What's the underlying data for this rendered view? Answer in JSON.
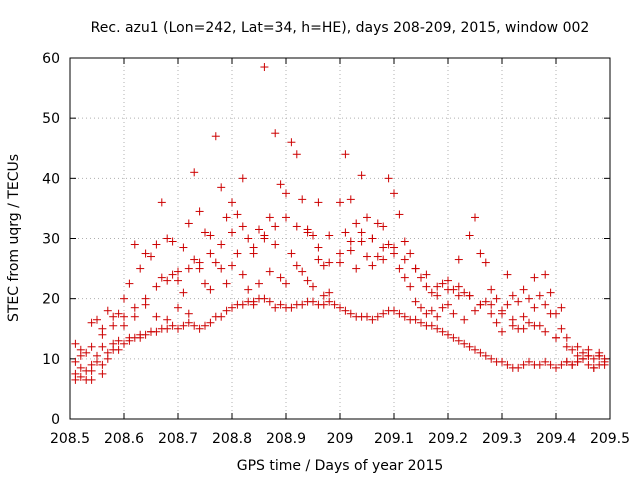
{
  "chart_data": {
    "type": "scatter",
    "title": "Rec. azu1 (Lon=242, Lat=34, h=HE), days 208-209, 2015, window 002",
    "xlabel": "GPS time / Days of year 2015",
    "ylabel": "STEC from uqrg / TECUs",
    "xlim": [
      208.5,
      209.5
    ],
    "ylim": [
      0,
      60
    ],
    "x_ticks": [
      208.5,
      208.6,
      208.7,
      208.8,
      208.9,
      209.0,
      209.1,
      209.2,
      209.3,
      209.4,
      209.5
    ],
    "x_tick_labels": [
      "208.5",
      "208.6",
      "208.7",
      "208.8",
      "208.9",
      "209",
      "209.1",
      "209.2",
      "209.3",
      "209.4",
      "209.5"
    ],
    "y_ticks": [
      0,
      10,
      20,
      30,
      40,
      50,
      60
    ],
    "y_tick_labels": [
      "0",
      "10",
      "20",
      "30",
      "40",
      "50",
      "60"
    ],
    "grid": true,
    "marker": "+",
    "color": "#cc0000",
    "series": [
      {
        "x": [
          208.51,
          208.51,
          208.51,
          208.52,
          208.52,
          208.53,
          208.53,
          208.54,
          208.54,
          208.54,
          208.55,
          208.55,
          208.56,
          208.56,
          208.56,
          208.57,
          208.57,
          208.58,
          208.58,
          208.59,
          208.59,
          208.6,
          208.6,
          208.61,
          208.61,
          208.62,
          208.62,
          208.63,
          208.63,
          208.64,
          208.64,
          208.65,
          208.65,
          208.66,
          208.66,
          208.67,
          208.67,
          208.68,
          208.68,
          208.69,
          208.69,
          208.7,
          208.7,
          208.71,
          208.71,
          208.72,
          208.72,
          208.73,
          208.73,
          208.74,
          208.74,
          208.75,
          208.75,
          208.76,
          208.76,
          208.77,
          208.77,
          208.78,
          208.78,
          208.79,
          208.79,
          208.8,
          208.8,
          208.81,
          208.81,
          208.82,
          208.82,
          208.83,
          208.83,
          208.84,
          208.84,
          208.85,
          208.85,
          208.86,
          208.86,
          208.87,
          208.87,
          208.88,
          208.88,
          208.89,
          208.89,
          208.9,
          208.9,
          208.91,
          208.91,
          208.92,
          208.92,
          208.93,
          208.93,
          208.94,
          208.94,
          208.95,
          208.95,
          208.96,
          208.96,
          208.97,
          208.97,
          208.98,
          208.98,
          209.0,
          209.0,
          209.01,
          209.01,
          209.02,
          209.02,
          209.03,
          209.03,
          209.04,
          209.04,
          209.05,
          209.05,
          209.06,
          209.06,
          209.07,
          209.07,
          209.08,
          209.08,
          209.09,
          209.09,
          209.1,
          209.1,
          209.11,
          209.11,
          209.12,
          209.12,
          209.13,
          209.13,
          209.14,
          209.14,
          209.15,
          209.15,
          209.16,
          209.16,
          209.17,
          209.17,
          209.18,
          209.18,
          209.19,
          209.19,
          209.2,
          209.2,
          209.21,
          209.21,
          209.22,
          209.22,
          209.23,
          209.23,
          209.24,
          209.24,
          209.25,
          209.25,
          209.26,
          209.26,
          209.27,
          209.27,
          209.28,
          209.28,
          209.29,
          209.29,
          209.3,
          209.3,
          209.31,
          209.31,
          209.32,
          209.32,
          209.33,
          209.33,
          209.34,
          209.34,
          209.35,
          209.35,
          209.36,
          209.36,
          209.37,
          209.37,
          209.38,
          209.38,
          209.39,
          209.39,
          209.4,
          209.4,
          209.41,
          209.41,
          209.42,
          209.42,
          209.43,
          209.43,
          209.44,
          209.44,
          209.45,
          209.45,
          209.46,
          209.46,
          209.47,
          209.47,
          209.48,
          209.48,
          209.49,
          209.49
        ],
        "y": [
          7.5,
          12.5,
          6.5,
          10.5,
          7.0,
          11.0,
          6.5,
          16.0,
          9.0,
          6.5,
          16.5,
          10.5,
          15.0,
          12.0,
          7.5,
          18.0,
          10.0,
          17.0,
          12.5,
          17.5,
          11.5,
          20.0,
          15.5,
          22.5,
          13.0,
          29.0,
          17.0,
          25.0,
          14.0,
          27.5,
          19.0,
          27.0,
          14.5,
          29.0,
          17.0,
          36.0,
          23.5,
          30.0,
          16.5,
          29.5,
          24.0,
          24.5,
          18.5,
          28.5,
          21.0,
          32.5,
          17.5,
          41.0,
          26.5,
          34.5,
          25.0,
          31.0,
          22.5,
          30.5,
          21.5,
          47.0,
          26.0,
          38.5,
          25.0,
          33.5,
          22.5,
          36.0,
          25.5,
          34.0,
          27.5,
          40.0,
          24.0,
          30.0,
          21.5,
          27.5,
          19.0,
          31.5,
          22.5,
          58.5,
          30.5,
          33.5,
          24.5,
          47.5,
          29.0,
          39.0,
          23.5,
          37.5,
          22.5,
          46.0,
          27.5,
          44.0,
          25.5,
          36.5,
          24.5,
          31.5,
          23.0,
          30.5,
          22.0,
          36.0,
          26.5,
          25.5,
          20.5,
          30.5,
          21.0,
          36.0,
          26.0,
          44.0,
          31.0,
          36.5,
          28.0,
          32.5,
          25.0,
          40.5,
          31.0,
          33.5,
          27.0,
          30.0,
          25.5,
          32.5,
          27.0,
          32.0,
          26.5,
          40.0,
          29.0,
          37.5,
          27.5,
          34.0,
          25.0,
          29.5,
          23.5,
          27.5,
          22.0,
          25.0,
          19.5,
          23.5,
          18.5,
          22.0,
          17.5,
          21.0,
          18.0,
          20.5,
          17.0,
          22.5,
          18.5,
          23.0,
          19.0,
          21.5,
          17.5,
          26.5,
          22.0,
          21.0,
          16.5,
          30.5,
          20.5,
          33.5,
          18.0,
          27.5,
          19.0,
          26.0,
          19.5,
          21.5,
          17.5,
          20.0,
          16.0,
          18.0,
          14.5,
          24.0,
          19.0,
          20.5,
          16.5,
          19.5,
          15.0,
          21.5,
          17.0,
          20.0,
          16.0,
          23.5,
          18.5,
          20.5,
          15.5,
          24.0,
          19.0,
          21.0,
          17.5,
          17.5,
          13.5,
          18.5,
          15.0,
          12.0,
          9.5,
          11.5,
          9.0,
          10.5,
          9.5,
          11.0,
          10.0,
          10.5,
          9.0,
          8.5,
          8.5,
          10.5,
          9.0,
          10.0,
          9.0
        ]
      },
      {
        "x": [
          208.51,
          208.52,
          208.53,
          208.54,
          208.55,
          208.56,
          208.57,
          208.58,
          208.59,
          208.6,
          208.61,
          208.62,
          208.63,
          208.64,
          208.65,
          208.66,
          208.67,
          208.68,
          208.69,
          208.7,
          208.71,
          208.72,
          208.73,
          208.74,
          208.75,
          208.76,
          208.77,
          208.78,
          208.79,
          208.8,
          208.81,
          208.82,
          208.83,
          208.84,
          208.85,
          208.86,
          208.87,
          208.88,
          208.89,
          208.9,
          208.91,
          208.92,
          208.93,
          208.94,
          208.95,
          208.96,
          208.97,
          208.98,
          208.99,
          209.0,
          209.01,
          209.02,
          209.03,
          209.04,
          209.05,
          209.06,
          209.07,
          209.08,
          209.09,
          209.1,
          209.11,
          209.12,
          209.13,
          209.14,
          209.15,
          209.16,
          209.17,
          209.18,
          209.19,
          209.2,
          209.21,
          209.22,
          209.23,
          209.24,
          209.25,
          209.26,
          209.27,
          209.28,
          209.29,
          209.3,
          209.31,
          209.32,
          209.33,
          209.34,
          209.35,
          209.36,
          209.37,
          209.38,
          209.39,
          209.4,
          209.41,
          209.42,
          209.43,
          209.44,
          209.45,
          209.46,
          209.47,
          209.48,
          209.49
        ],
        "y": [
          9.5,
          8.5,
          8.0,
          8.0,
          9.5,
          9.0,
          11.0,
          11.5,
          13.0,
          12.5,
          13.5,
          13.5,
          13.5,
          14.0,
          14.5,
          14.5,
          15.0,
          15.0,
          15.5,
          15.0,
          15.5,
          16.0,
          15.5,
          15.0,
          15.5,
          16.0,
          17.0,
          17.0,
          18.0,
          18.5,
          19.0,
          19.0,
          19.5,
          19.5,
          20.0,
          20.0,
          19.5,
          18.5,
          19.0,
          18.5,
          18.5,
          19.0,
          19.0,
          19.5,
          19.5,
          19.0,
          19.0,
          19.5,
          19.0,
          18.5,
          18.0,
          17.5,
          17.0,
          17.0,
          17.0,
          16.5,
          17.0,
          17.5,
          18.0,
          18.0,
          17.5,
          17.0,
          16.5,
          16.5,
          16.0,
          15.5,
          15.5,
          15.0,
          14.5,
          14.0,
          13.5,
          13.0,
          12.5,
          12.0,
          11.5,
          11.0,
          10.5,
          10.0,
          9.5,
          9.5,
          9.0,
          8.5,
          8.5,
          9.0,
          9.5,
          9.0,
          9.0,
          9.5,
          9.0,
          8.5,
          9.0,
          9.5,
          9.0,
          9.5,
          10.0,
          10.5,
          10.0,
          10.5,
          9.5
        ]
      },
      {
        "x": [
          208.52,
          208.54,
          208.56,
          208.58,
          208.6,
          208.62,
          208.64,
          208.66,
          208.68,
          208.7,
          208.72,
          208.74,
          208.76,
          208.78,
          208.8,
          208.82,
          208.84,
          208.86,
          208.88,
          208.9,
          208.92,
          208.94,
          208.96,
          208.98,
          209.0,
          209.02,
          209.04,
          209.06,
          209.08,
          209.1,
          209.12,
          209.14,
          209.16,
          209.18,
          209.2,
          209.22,
          209.24,
          209.26,
          209.28,
          209.3,
          209.32,
          209.34,
          209.36,
          209.38,
          209.4,
          209.42,
          209.44,
          209.46,
          209.48
        ],
        "y": [
          11.5,
          12.0,
          14.0,
          15.5,
          17.0,
          18.5,
          20.0,
          22.0,
          23.0,
          23.0,
          25.0,
          26.0,
          27.5,
          29.0,
          31.0,
          32.0,
          28.5,
          30.0,
          32.0,
          33.5,
          32.0,
          31.0,
          28.5,
          26.0,
          27.5,
          29.5,
          29.5,
          30.0,
          28.5,
          28.5,
          26.5,
          25.0,
          24.0,
          22.0,
          21.5,
          20.5,
          20.5,
          19.0,
          19.0,
          17.5,
          15.5,
          15.0,
          15.5,
          14.5,
          13.5,
          13.5,
          12.0,
          11.5,
          11.0
        ]
      }
    ]
  }
}
